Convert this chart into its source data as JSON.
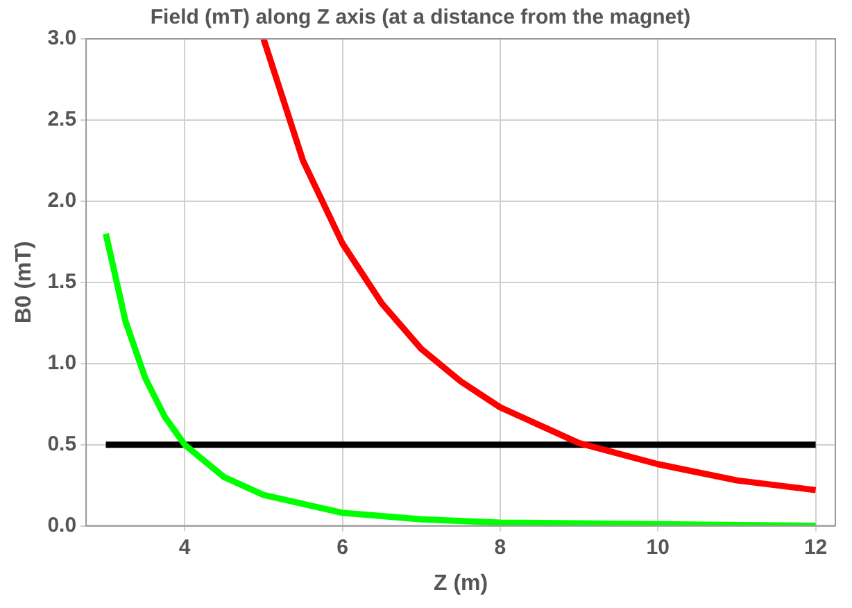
{
  "chart_data": {
    "type": "line",
    "title": "Field (mT) along Z axis (at a distance from the magnet)",
    "xlabel": "Z (m)",
    "ylabel": "B0 (mT)",
    "series": [
      {
        "color": "#00ff00",
        "x": [
          3,
          3.25,
          3.5,
          3.75,
          4,
          4.5,
          5,
          6,
          7,
          8,
          10,
          12
        ],
        "values": [
          1.8,
          1.26,
          0.91,
          0.67,
          0.5,
          0.3,
          0.19,
          0.08,
          0.04,
          0.02,
          0.01,
          0
        ]
      },
      {
        "color": "#ff0000",
        "x": [
          5,
          5.5,
          6,
          6.5,
          7,
          7.5,
          8,
          9,
          10,
          11,
          12
        ],
        "values": [
          3.0,
          2.25,
          1.74,
          1.37,
          1.09,
          0.89,
          0.73,
          0.51,
          0.38,
          0.28,
          0.22
        ]
      },
      {
        "color": "#000000",
        "x": [
          3,
          12
        ],
        "values": [
          0.5,
          0.5
        ]
      }
    ],
    "xlim": [
      2.75,
      12.25
    ],
    "xticks": [
      4,
      6,
      8,
      10,
      12
    ],
    "ylim": [
      0,
      3
    ],
    "yticks": [
      {
        "value": 0,
        "label": "0.0"
      },
      {
        "value": 0.5,
        "label": "0.5"
      },
      {
        "value": 1,
        "label": "1.0"
      },
      {
        "value": 1.5,
        "label": "1.5"
      },
      {
        "value": 2,
        "label": "2.0"
      },
      {
        "value": 2.5,
        "label": "2.5"
      },
      {
        "value": 3,
        "label": "3.0"
      }
    ],
    "grid": true,
    "marker": "none",
    "line_style": "solid"
  }
}
